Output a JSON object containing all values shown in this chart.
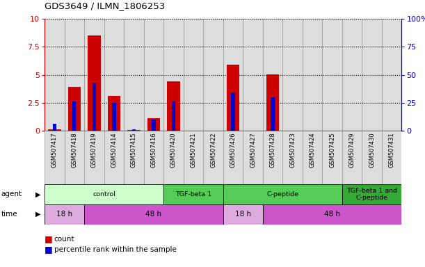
{
  "title": "GDS3649 / ILMN_1806253",
  "samples": [
    "GSM507417",
    "GSM507418",
    "GSM507419",
    "GSM507414",
    "GSM507415",
    "GSM507416",
    "GSM507420",
    "GSM507421",
    "GSM507422",
    "GSM507426",
    "GSM507427",
    "GSM507428",
    "GSM507423",
    "GSM507424",
    "GSM507425",
    "GSM507429",
    "GSM507430",
    "GSM507431"
  ],
  "count_values": [
    0.15,
    3.9,
    8.5,
    3.1,
    0.05,
    1.1,
    4.4,
    0.0,
    0.0,
    5.9,
    0.0,
    5.05,
    0.0,
    0.0,
    0.0,
    0.0,
    0.0,
    0.0
  ],
  "percentile_values": [
    0.65,
    2.6,
    4.3,
    2.5,
    0.15,
    1.0,
    2.7,
    0.0,
    0.0,
    3.4,
    0.0,
    3.0,
    0.0,
    0.0,
    0.0,
    0.0,
    0.0,
    0.0
  ],
  "bar_color": "#cc0000",
  "pct_color": "#0000cc",
  "ylim": [
    0,
    10
  ],
  "yticks": [
    0,
    2.5,
    5.0,
    7.5,
    10
  ],
  "ytick_labels": [
    "0",
    "2.5",
    "5",
    "7.5",
    "10"
  ],
  "y2tick_labels": [
    "0",
    "25",
    "50",
    "75",
    "100%"
  ],
  "agent_groups": [
    {
      "label": "control",
      "start": 0,
      "end": 6,
      "color": "#ccffcc"
    },
    {
      "label": "TGF-beta 1",
      "start": 6,
      "end": 9,
      "color": "#55cc55"
    },
    {
      "label": "C-peptide",
      "start": 9,
      "end": 15,
      "color": "#55cc55"
    },
    {
      "label": "TGF-beta 1 and\nC-peptide",
      "start": 15,
      "end": 18,
      "color": "#33aa33"
    }
  ],
  "time_groups": [
    {
      "label": "18 h",
      "start": 0,
      "end": 2,
      "color": "#ddaadd"
    },
    {
      "label": "48 h",
      "start": 2,
      "end": 9,
      "color": "#cc55cc"
    },
    {
      "label": "18 h",
      "start": 9,
      "end": 11,
      "color": "#ddaadd"
    },
    {
      "label": "48 h",
      "start": 11,
      "end": 18,
      "color": "#cc55cc"
    }
  ],
  "bar_bg_color": "#dddddd",
  "bar_border_color": "#aaaaaa",
  "tick_label_color": "#cc0000",
  "right_tick_color": "#0000cc",
  "col_sep_color": "#999999"
}
